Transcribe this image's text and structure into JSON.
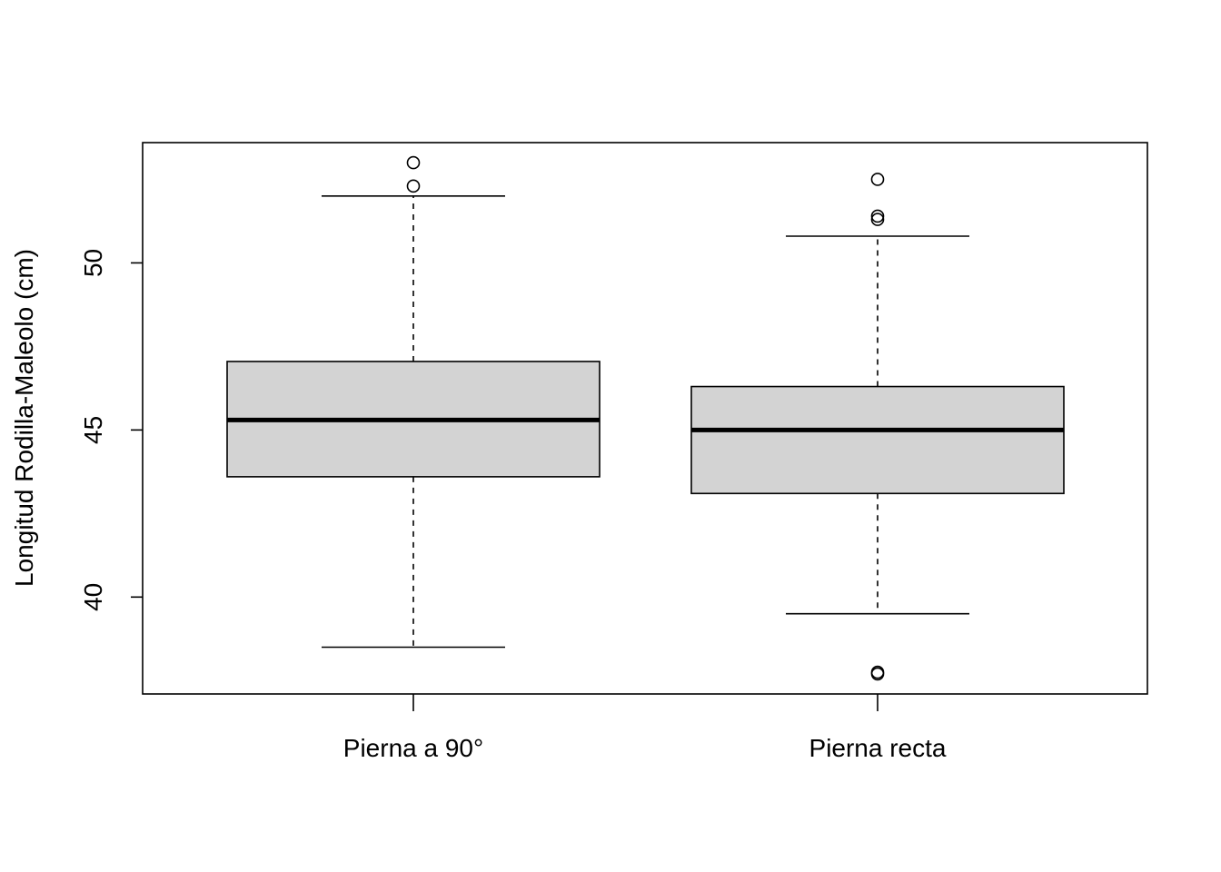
{
  "chart_data": {
    "type": "box",
    "title": "",
    "xlabel": "",
    "ylabel": "Longitud Rodilla-Maleolo (cm)",
    "ylim": [
      37.1,
      53.6
    ],
    "yticks": [
      40,
      45,
      50
    ],
    "grid": false,
    "categories": [
      "Pierna a 90°",
      "Pierna recta"
    ],
    "boxes": [
      {
        "category": "Pierna a 90°",
        "whisker_low": 38.5,
        "q1": 43.6,
        "median": 45.3,
        "q3": 47.05,
        "whisker_high": 52.0,
        "outliers": [
          52.3,
          53.0
        ]
      },
      {
        "category": "Pierna recta",
        "whisker_low": 39.5,
        "q1": 43.1,
        "median": 45.0,
        "q3": 46.3,
        "whisker_high": 50.8,
        "outliers": [
          51.3,
          51.4,
          52.5,
          37.7,
          37.75
        ]
      }
    ],
    "box_fill": "#d3d3d3"
  }
}
